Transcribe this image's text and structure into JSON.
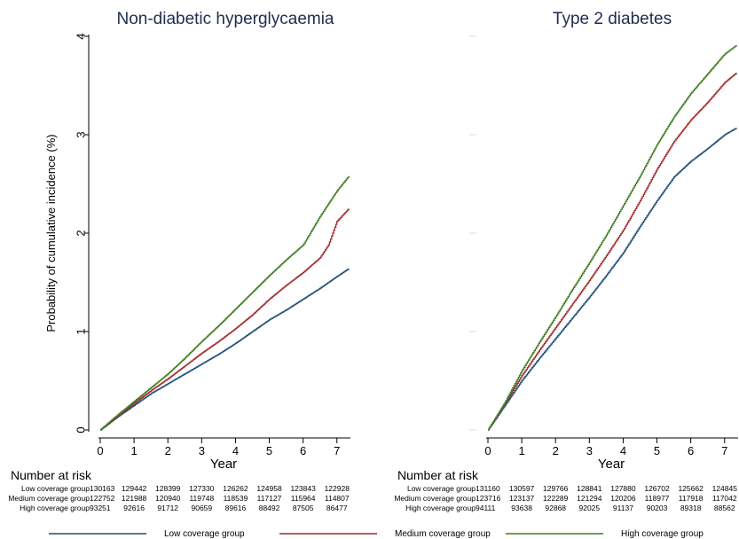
{
  "chart_data": [
    {
      "type": "line",
      "title": "Non-diabetic hyperglycaemia",
      "xlabel": "Year",
      "ylabel": "Probability of cumulative incidence (%)",
      "xlim": [
        0,
        7.4
      ],
      "ylim": [
        0,
        4
      ],
      "xticks": [
        "0",
        "1",
        "2",
        "3",
        "4",
        "5",
        "6",
        "7"
      ],
      "yticks": [
        "0",
        "1",
        "2",
        "3",
        "4"
      ],
      "grid": false,
      "series": [
        {
          "name": "Low coverage group",
          "color": "#1f4e79",
          "x": [
            0,
            0.5,
            1,
            1.5,
            2,
            2.5,
            3,
            3.5,
            4,
            4.5,
            5,
            5.5,
            6,
            6.5,
            7,
            7.35
          ],
          "y": [
            0,
            0.13,
            0.25,
            0.37,
            0.47,
            0.57,
            0.67,
            0.77,
            0.88,
            1.0,
            1.12,
            1.22,
            1.33,
            1.44,
            1.56,
            1.64
          ]
        },
        {
          "name": "Medium coverage group",
          "color": "#a32a2e",
          "x": [
            0,
            0.5,
            1,
            1.5,
            2,
            2.5,
            3,
            3.5,
            4,
            4.5,
            5,
            5.5,
            6,
            6.5,
            6.75,
            7,
            7.35
          ],
          "y": [
            0,
            0.14,
            0.27,
            0.4,
            0.52,
            0.65,
            0.78,
            0.9,
            1.03,
            1.17,
            1.33,
            1.47,
            1.6,
            1.75,
            1.88,
            2.12,
            2.25
          ]
        },
        {
          "name": "High coverage group",
          "color": "#3f7d20",
          "x": [
            0,
            0.5,
            1,
            1.5,
            2,
            2.5,
            3,
            3.5,
            4,
            4.5,
            5,
            5.5,
            6,
            6.5,
            7,
            7.35
          ],
          "y": [
            0,
            0.15,
            0.29,
            0.43,
            0.57,
            0.73,
            0.9,
            1.06,
            1.23,
            1.4,
            1.57,
            1.73,
            1.88,
            2.17,
            2.43,
            2.58
          ]
        }
      ],
      "number_at_risk": {
        "header": "Number at risk",
        "rows": [
          {
            "label": "Low coverage group",
            "values": [
              "130163",
              "129442",
              "128399",
              "127330",
              "126262",
              "124958",
              "123843",
              "122928"
            ]
          },
          {
            "label": "Medium coverage group",
            "values": [
              "122752",
              "121988",
              "120940",
              "119748",
              "118539",
              "117127",
              "115964",
              "114807"
            ]
          },
          {
            "label": "High coverage group",
            "values": [
              "93251",
              "92616",
              "91712",
              "90659",
              "89616",
              "88492",
              "87505",
              "86477"
            ]
          }
        ]
      }
    },
    {
      "type": "line",
      "title": "Type 2 diabetes",
      "xlabel": "Year",
      "ylabel": "",
      "xlim": [
        0,
        7.4
      ],
      "ylim": [
        0,
        4
      ],
      "xticks": [
        "0",
        "1",
        "2",
        "3",
        "4",
        "5",
        "6",
        "7"
      ],
      "yticks": [
        "0",
        "1",
        "2",
        "3",
        "4"
      ],
      "grid": false,
      "series": [
        {
          "name": "Low coverage group",
          "color": "#1f4e79",
          "x": [
            0,
            0.5,
            1,
            1.5,
            2,
            2.5,
            3,
            3.5,
            4,
            4.5,
            5,
            5.5,
            6,
            6.5,
            7,
            7.35
          ],
          "y": [
            0,
            0.25,
            0.5,
            0.72,
            0.93,
            1.14,
            1.35,
            1.57,
            1.8,
            2.07,
            2.33,
            2.57,
            2.73,
            2.86,
            3.0,
            3.07
          ]
        },
        {
          "name": "Medium coverage group",
          "color": "#a32a2e",
          "x": [
            0,
            0.5,
            1,
            1.5,
            2,
            2.5,
            3,
            3.5,
            4,
            4.5,
            5,
            5.5,
            6,
            6.5,
            7,
            7.35
          ],
          "y": [
            0,
            0.27,
            0.55,
            0.8,
            1.04,
            1.28,
            1.52,
            1.77,
            2.03,
            2.33,
            2.65,
            2.93,
            3.15,
            3.33,
            3.53,
            3.63
          ]
        },
        {
          "name": "High coverage group",
          "color": "#3f7d20",
          "x": [
            0,
            0.5,
            1,
            1.5,
            2,
            2.5,
            3,
            3.5,
            4,
            4.5,
            5,
            5.5,
            6,
            6.5,
            7,
            7.35
          ],
          "y": [
            0,
            0.28,
            0.6,
            0.88,
            1.15,
            1.43,
            1.7,
            1.98,
            2.28,
            2.58,
            2.9,
            3.18,
            3.42,
            3.62,
            3.82,
            3.91
          ]
        }
      ],
      "number_at_risk": {
        "header": "Number at risk",
        "rows": [
          {
            "label": "Low coverage group",
            "values": [
              "131160",
              "130597",
              "129766",
              "128841",
              "127880",
              "126702",
              "125662",
              "124845"
            ]
          },
          {
            "label": "Medium coverage group",
            "values": [
              "123716",
              "123137",
              "122289",
              "121294",
              "120206",
              "118977",
              "117918",
              "117042"
            ]
          },
          {
            "label": "High coverage group",
            "values": [
              "94111",
              "93638",
              "92868",
              "92025",
              "91137",
              "90203",
              "89318",
              "88562"
            ]
          }
        ]
      }
    }
  ],
  "legend": {
    "placement": "bottom",
    "items": [
      {
        "label": "Low coverage group",
        "color": "#1f4e79"
      },
      {
        "label": "Medium coverage group",
        "color": "#a32a2e"
      },
      {
        "label": "High coverage group",
        "color": "#3f7d20"
      }
    ]
  }
}
